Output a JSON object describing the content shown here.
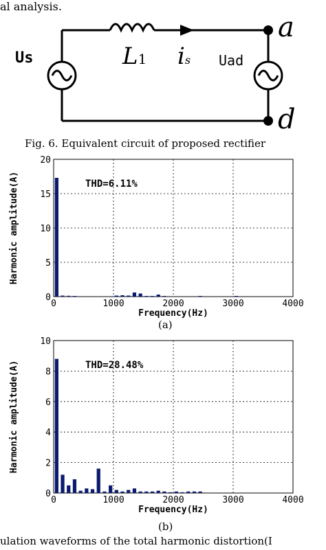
{
  "top_text": "al analysis.",
  "circuit": {
    "source_left_label": "Us",
    "inductor_label": "L",
    "inductor_sub": "1",
    "current_label": "i",
    "current_sub": "s",
    "source_right_label": "Uad",
    "node_top": "a",
    "node_bottom": "d"
  },
  "fig6_caption": "Fig. 6. Equivalent circuit of proposed rectifier",
  "chart_data": [
    {
      "type": "bar",
      "title": "",
      "xlabel": "Frequency(Hz)",
      "ylabel": "Harmonic amplitude(A)",
      "xlim": [
        0,
        4000
      ],
      "ylim": [
        0,
        20
      ],
      "xticks": [
        "0",
        "1000",
        "2000",
        "3000",
        "4000"
      ],
      "yticks": [
        "0",
        "5",
        "10",
        "15",
        "20"
      ],
      "grid": true,
      "annotation": "THD=6.11%",
      "x": [
        50,
        150,
        250,
        350,
        1050,
        1150,
        1250,
        1350,
        1450,
        1550,
        1650,
        1750,
        1850,
        2450,
        3050
      ],
      "values": [
        17.3,
        0.15,
        0.12,
        0.1,
        0.15,
        0.2,
        0.15,
        0.6,
        0.45,
        0.1,
        0.1,
        0.3,
        0.1,
        0.1,
        0.1
      ],
      "sub_caption": "(a)"
    },
    {
      "type": "bar",
      "title": "",
      "xlabel": "Frequency(Hz)",
      "ylabel": "Harmonic amplitude(A)",
      "xlim": [
        0,
        4000
      ],
      "ylim": [
        0,
        10
      ],
      "xticks": [
        "0",
        "1000",
        "2000",
        "3000",
        "4000"
      ],
      "yticks": [
        "0",
        "2",
        "4",
        "6",
        "8",
        "10"
      ],
      "grid": true,
      "annotation": "THD=28.48%",
      "x": [
        50,
        150,
        250,
        350,
        450,
        550,
        650,
        750,
        850,
        950,
        1050,
        1150,
        1250,
        1350,
        1450,
        1550,
        1650,
        1750,
        1850,
        1950,
        2050,
        2150,
        2250,
        2350,
        2450
      ],
      "values": [
        8.8,
        1.2,
        0.5,
        0.9,
        0.15,
        0.3,
        0.25,
        1.6,
        0.1,
        0.5,
        0.2,
        0.1,
        0.2,
        0.3,
        0.1,
        0.1,
        0.1,
        0.15,
        0.1,
        0.05,
        0.1,
        0.05,
        0.1,
        0.1,
        0.1
      ],
      "sub_caption": "(b)"
    }
  ],
  "fig7_caption": "ulation waveforms of the total harmonic distortion(I"
}
